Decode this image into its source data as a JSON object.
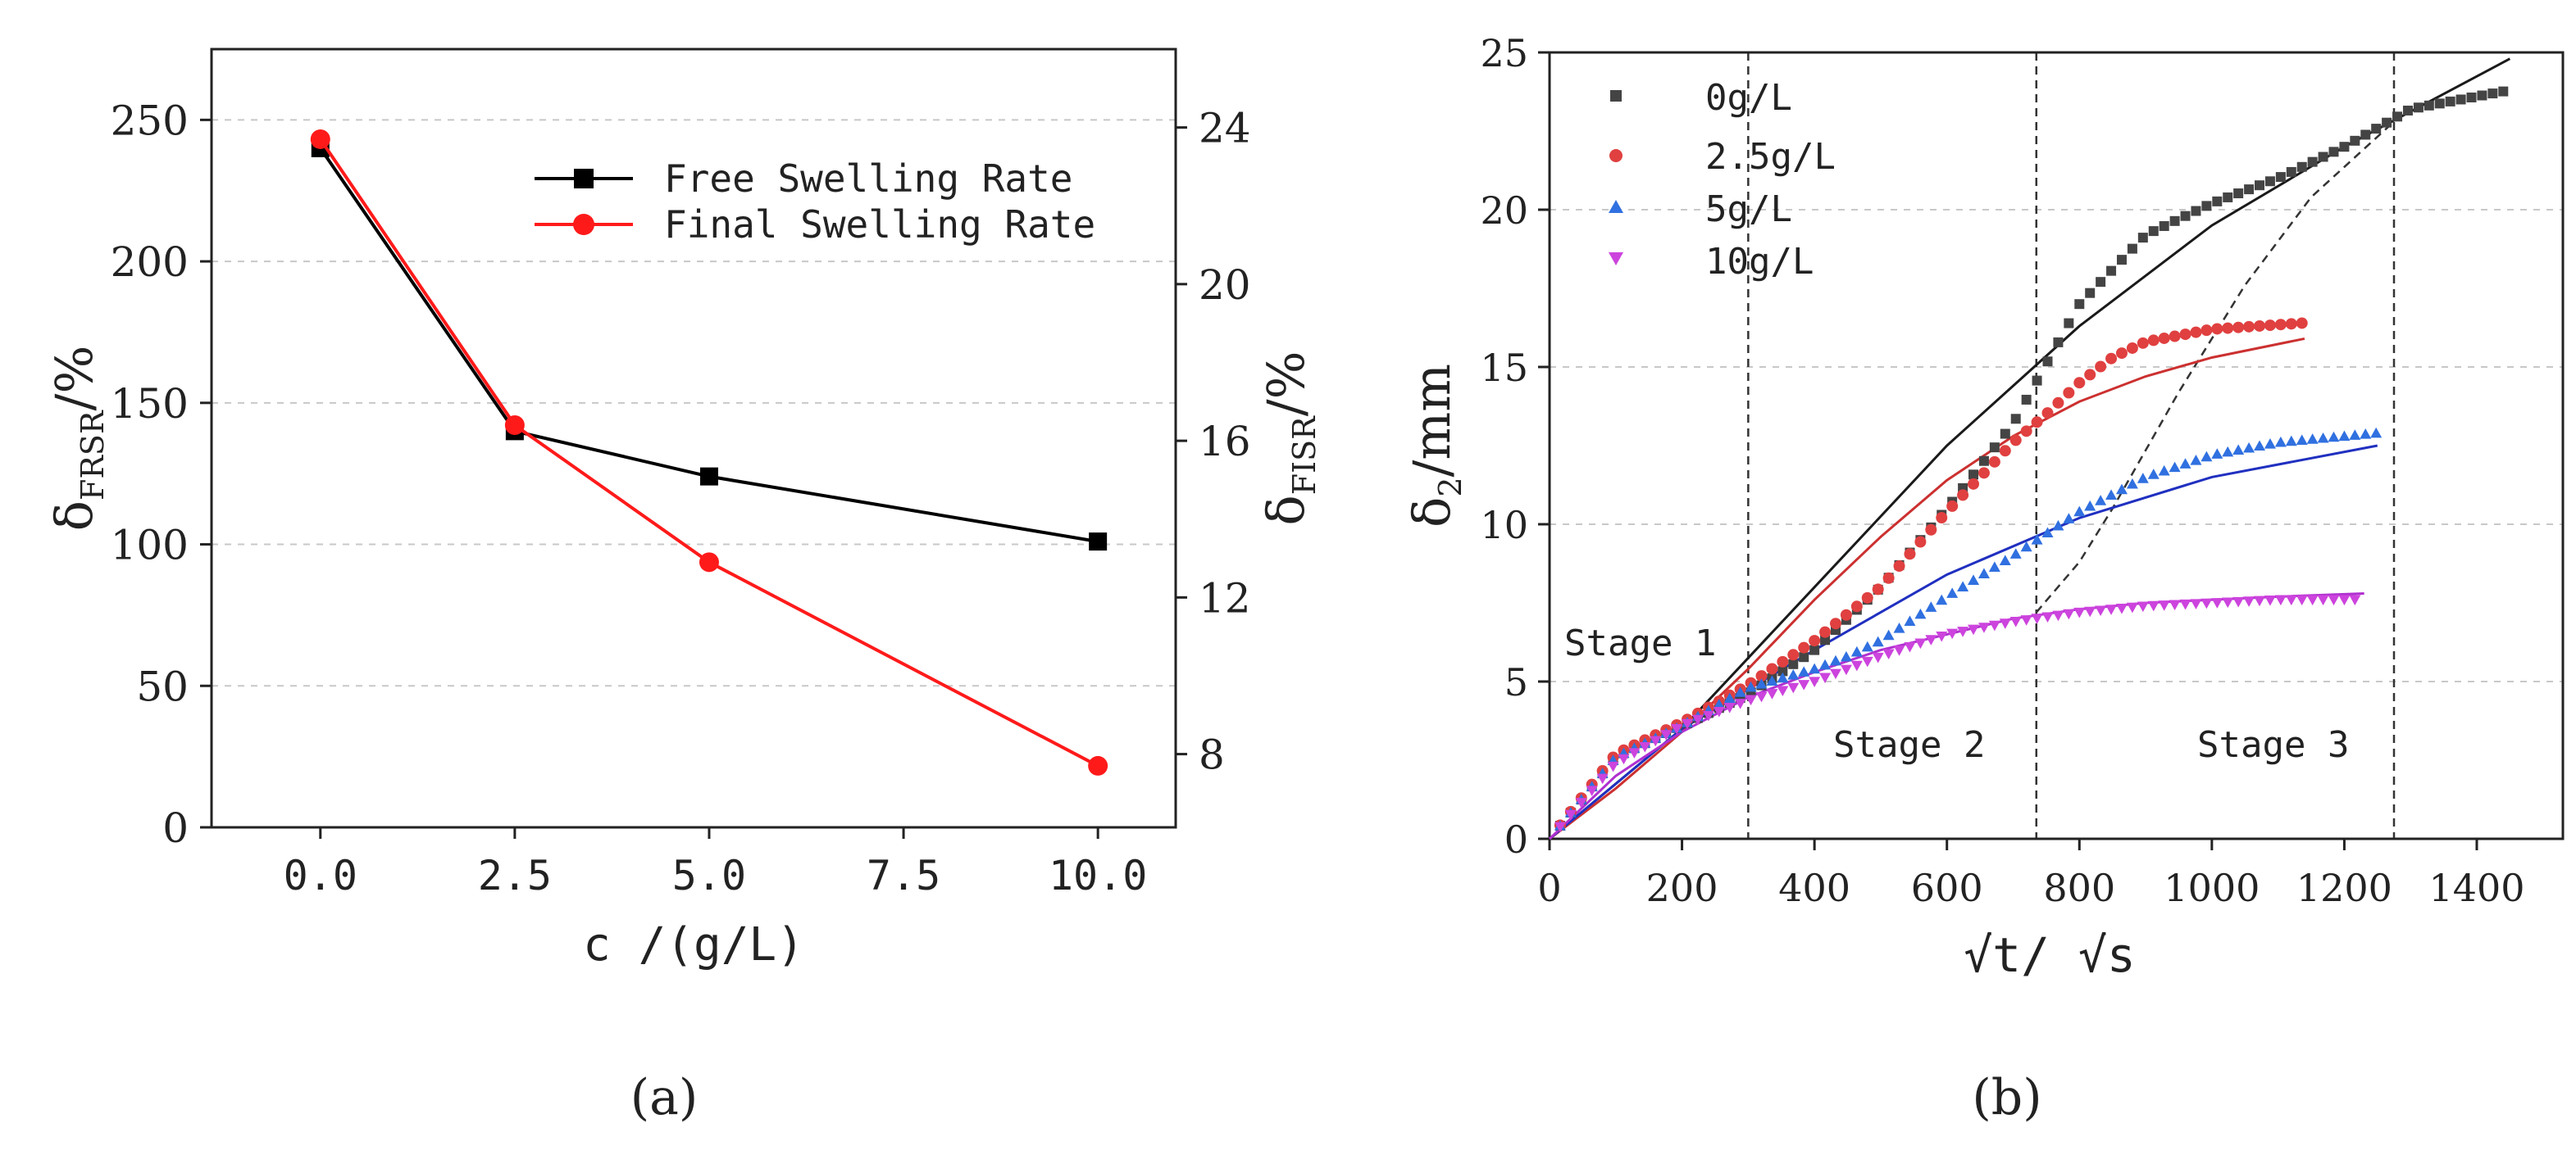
{
  "panel_labels": [
    "(a)",
    "(b)"
  ],
  "chart_data": [
    {
      "panel": "(a)",
      "type": "line",
      "xlabel": "c /(g/L)",
      "ylabel_left": {
        "base": "δ",
        "sub": "FRSR",
        "suffix": "/%"
      },
      "ylabel_right": {
        "base": "δ",
        "sub": "FISR",
        "suffix": "/%"
      },
      "xlim": [
        -1.4,
        11.0
      ],
      "xticks": [
        "0.0",
        "2.5",
        "5.0",
        "7.5",
        "10.0"
      ],
      "xtick_values": [
        0,
        2.5,
        5,
        7.5,
        10
      ],
      "ylim_left": [
        0,
        275
      ],
      "yticks_left": [
        0,
        50,
        100,
        150,
        200,
        250
      ],
      "ylim_right": [
        6.13,
        26.0
      ],
      "yticks_right": [
        8,
        12,
        16,
        20,
        24
      ],
      "grid": "horizontal dashed",
      "legend_position": "top-right",
      "series": [
        {
          "name": "Free Swelling Rate",
          "axis": "left",
          "color": "#000000",
          "marker": "square",
          "x": [
            0,
            2.5,
            5,
            10
          ],
          "y": [
            240,
            140,
            124,
            101
          ]
        },
        {
          "name": "Final Swelling Rate",
          "axis": "right",
          "color": "#ff1a1a",
          "marker": "circle",
          "x": [
            0,
            2.5,
            5,
            10
          ],
          "y": [
            23.7,
            16.4,
            12.9,
            7.7
          ]
        }
      ]
    },
    {
      "panel": "(b)",
      "type": "scatter",
      "xlabel": "√t/ √s",
      "ylabel": {
        "base": "δ",
        "sub": "2",
        "suffix": "/mm"
      },
      "xlim": [
        0,
        1530
      ],
      "xticks": [
        0,
        200,
        400,
        600,
        800,
        1000,
        1200,
        1400
      ],
      "ylim": [
        0,
        25
      ],
      "yticks": [
        0,
        5,
        10,
        15,
        20,
        25
      ],
      "grid": "horizontal dashed",
      "legend_position": "top-left",
      "stage_labels": [
        "Stage 1",
        "Stage 2",
        "Stage 3"
      ],
      "stage_boundaries_x": [
        300,
        735,
        1275
      ],
      "series": [
        {
          "name": "0g/L",
          "color": "#444444",
          "marker": "square",
          "step": 16,
          "x": [
            0,
            100,
            200,
            300,
            400,
            500,
            600,
            700,
            800,
            900,
            1000,
            1100,
            1200,
            1300,
            1450
          ],
          "y": [
            0,
            2.6,
            3.6,
            4.6,
            6.0,
            8.0,
            10.5,
            13.2,
            17.0,
            19.2,
            20.2,
            21.0,
            22.0,
            23.2,
            23.8
          ],
          "fit_x": [
            0,
            200,
            400,
            600,
            800,
            1000,
            1200,
            1450
          ],
          "fit_y": [
            0,
            3.5,
            8.0,
            12.5,
            16.3,
            19.5,
            22.0,
            24.8
          ]
        },
        {
          "name": "2.5g/L",
          "color": "#e04040",
          "marker": "circle",
          "step": 16,
          "x": [
            0,
            100,
            200,
            300,
            400,
            500,
            600,
            700,
            750,
            800,
            850,
            900,
            1000,
            1140
          ],
          "y": [
            0,
            2.7,
            3.7,
            4.9,
            6.3,
            8.0,
            10.4,
            12.6,
            13.5,
            14.5,
            15.3,
            15.8,
            16.2,
            16.4
          ],
          "fit_x": [
            0,
            100,
            200,
            300,
            400,
            500,
            600,
            700,
            800,
            900,
            1000,
            1140
          ],
          "fit_y": [
            0,
            1.6,
            3.4,
            5.4,
            7.6,
            9.6,
            11.4,
            12.8,
            13.9,
            14.7,
            15.3,
            15.9
          ]
        },
        {
          "name": "5g/L",
          "color": "#3070e0",
          "marker": "triangle-up",
          "step": 16,
          "x": [
            0,
            100,
            200,
            300,
            400,
            450,
            500,
            600,
            700,
            800,
            900,
            1000,
            1100,
            1250
          ],
          "y": [
            0,
            2.6,
            3.6,
            4.8,
            5.4,
            5.8,
            6.3,
            7.7,
            9.0,
            10.4,
            11.5,
            12.2,
            12.6,
            12.9
          ],
          "fit_x": [
            0,
            200,
            400,
            600,
            800,
            1000,
            1250
          ],
          "fit_y": [
            0,
            3.5,
            6.0,
            8.4,
            10.2,
            11.5,
            12.5
          ]
        },
        {
          "name": "10g/L",
          "color": "#cc44dd",
          "marker": "triangle-down",
          "step": 16,
          "x": [
            0,
            100,
            200,
            300,
            400,
            500,
            600,
            700,
            800,
            900,
            1000,
            1100,
            1230
          ],
          "y": [
            0,
            2.4,
            3.6,
            4.4,
            5.0,
            5.8,
            6.5,
            6.9,
            7.2,
            7.4,
            7.5,
            7.6,
            7.6
          ],
          "fit_x": [
            0,
            100,
            200,
            300,
            400,
            500,
            600,
            700,
            800,
            900,
            1000,
            1100,
            1230
          ],
          "fit_y": [
            0,
            2.0,
            3.4,
            4.5,
            5.3,
            6.0,
            6.5,
            7.0,
            7.3,
            7.5,
            7.6,
            7.7,
            7.8
          ]
        }
      ]
    }
  ]
}
